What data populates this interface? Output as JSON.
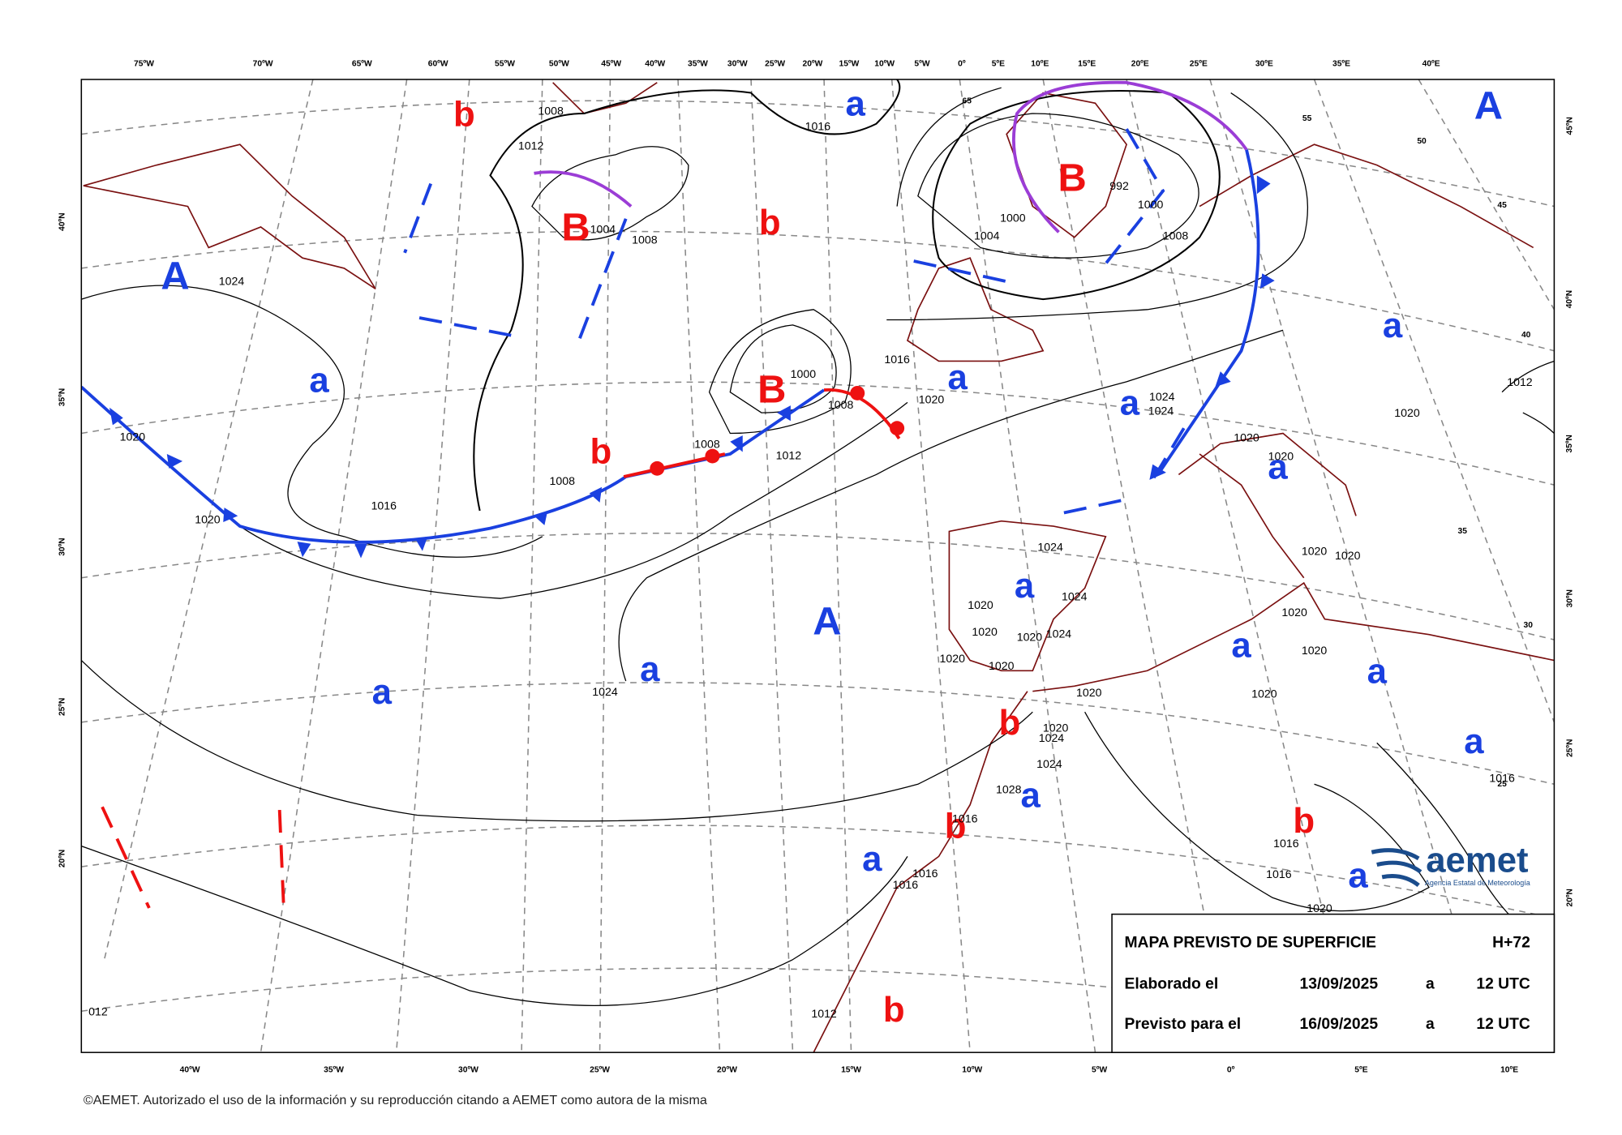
{
  "top_longitudes": [
    "75ºW",
    "70ºW",
    "65ºW",
    "60ºW",
    "55ºW",
    "50ºW",
    "45ºW",
    "40ºW",
    "35ºW",
    "30ºW",
    "25ºW",
    "20ºW",
    "15ºW",
    "10ºW",
    "5ºW",
    "0º",
    "5ºE",
    "10ºE",
    "15ºE",
    "20ºE",
    "25ºE",
    "30ºE",
    "35ºE",
    "40ºE"
  ],
  "bottom_longitudes": [
    "40ºW",
    "35ºW",
    "30ºW",
    "25ºW",
    "20ºW",
    "15ºW",
    "10ºW",
    "5ºW",
    "0º",
    "5ºE",
    "10ºE"
  ],
  "left_latitudes": [
    "40ºN",
    "35ºN",
    "30ºN",
    "25ºN",
    "20ºN"
  ],
  "right_latitudes": [
    "45ºN",
    "40ºN",
    "35ºN",
    "30ºN",
    "25ºN",
    "20ºN"
  ],
  "high_centers": [
    "A",
    "A",
    "A"
  ],
  "low_centers": [
    "B",
    "B",
    "B"
  ],
  "high_relative": [
    "a",
    "a",
    "a",
    "a",
    "a",
    "a",
    "a",
    "a",
    "a",
    "a",
    "a",
    "a",
    "a",
    "a",
    "a"
  ],
  "low_relative": [
    "b",
    "b",
    "b",
    "b",
    "b",
    "b",
    "b"
  ],
  "isobar_labels": [
    "1012",
    "1008",
    "1016",
    "1024",
    "1004",
    "1008",
    "1000",
    "1008",
    "1012",
    "1008",
    "1008",
    "1016",
    "1020",
    "1020",
    "1016",
    "1020",
    "1024",
    "1024",
    "1000",
    "1004",
    "1008",
    "1000",
    "992",
    "1024",
    "1020",
    "1020",
    "1020",
    "1020",
    "1020",
    "1020",
    "1020",
    "1020",
    "1020",
    "1024",
    "1020",
    "1020",
    "1024",
    "1020",
    "1020",
    "1020",
    "1024",
    "1020",
    "1024",
    "1024",
    "1028",
    "1016",
    "1016",
    "1016",
    "1016",
    "1016",
    "1020",
    "1016",
    "1012",
    "1012",
    "012"
  ],
  "contour_labels": [
    "65",
    "55",
    "50",
    "45",
    "40",
    "35",
    "30",
    "25"
  ],
  "info_box": {
    "title": "MAPA PREVISTO DE SUPERFICIE",
    "range": "H+72",
    "made_label": "Elaborado el",
    "made_date": "13/09/2025",
    "made_at": "a",
    "made_time": "12 UTC",
    "valid_label": "Previsto para el",
    "valid_date": "16/09/2025",
    "valid_at": "a",
    "valid_time": "12 UTC"
  },
  "logo": {
    "name": "aemet",
    "agency": "Agencia Estatal de Meteorología"
  },
  "copyright": "©AEMET. Autorizado el uso de la información y su reproducción citando a AEMET como autora de la misma"
}
